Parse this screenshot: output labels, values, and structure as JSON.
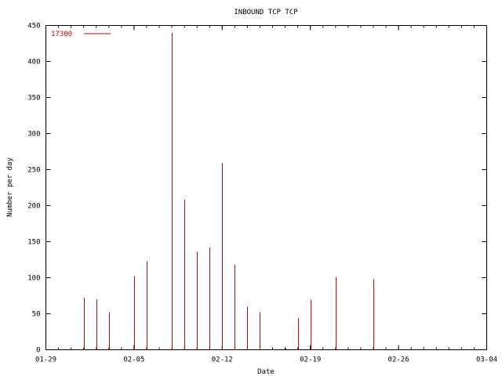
{
  "chart_data": {
    "type": "bar",
    "title": "INBOUND TCP TCP",
    "xlabel": "Date",
    "ylabel": "Number per day",
    "ylim": [
      0,
      450
    ],
    "yticks": [
      0,
      50,
      100,
      150,
      200,
      250,
      300,
      350,
      400,
      450
    ],
    "xlim": [
      "01-29",
      "03-04"
    ],
    "xtick_labels": [
      "01-29",
      "02-05",
      "02-12",
      "02-19",
      "02-26",
      "03-04"
    ],
    "grid": false,
    "legend_position": "top-left",
    "series": [
      {
        "name": "17300",
        "color": "#cc0000",
        "x": [
          "02-01",
          "02-02",
          "02-03",
          "02-05",
          "02-06",
          "02-08",
          "02-09",
          "02-10",
          "02-11",
          "02-12",
          "02-13",
          "02-14",
          "02-15",
          "02-17",
          "02-18",
          "02-19",
          "02-21",
          "02-24"
        ],
        "values": [
          72,
          70,
          52,
          102,
          123,
          440,
          208,
          136,
          142,
          259,
          118,
          60,
          52,
          2,
          44,
          69,
          101,
          98
        ]
      }
    ]
  }
}
